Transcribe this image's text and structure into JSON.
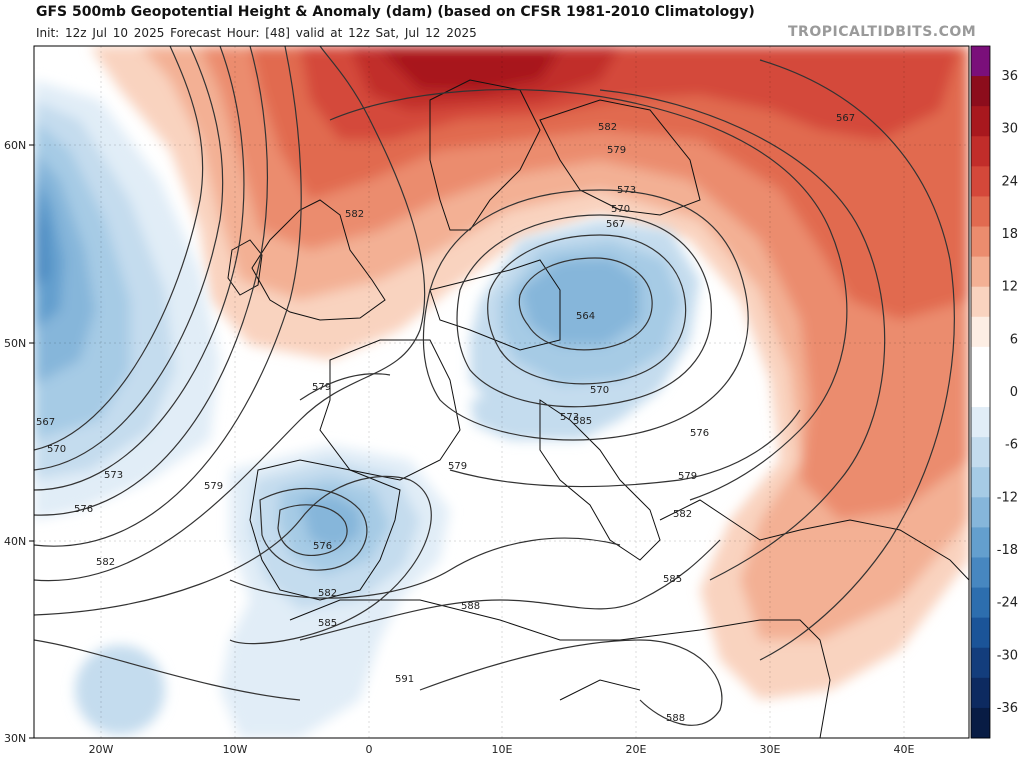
{
  "header": {
    "title": "GFS 500mb Geopotential Height & Anomaly (dam) (based on CFSR 1981-2010 Climatology)",
    "subtitle": "Init: 12z Jul 10 2025   Forecast Hour: [48]   valid at 12z Sat, Jul 12 2025",
    "brand": "TROPICALTIDBITS.COM"
  },
  "map": {
    "region": "Europe / North Atlantic",
    "lat_labels": [
      "60N",
      "50N",
      "40N",
      "30N"
    ],
    "lon_labels": [
      "20W",
      "10W",
      "0",
      "10E",
      "20E",
      "30E",
      "40E"
    ],
    "height_contour_labels": [
      "567",
      "582",
      "582",
      "579",
      "573",
      "570",
      "567",
      "564",
      "579",
      "579",
      "570",
      "573",
      "576",
      "579",
      "582",
      "585",
      "567",
      "570",
      "573",
      "576",
      "579",
      "582",
      "576",
      "582",
      "585",
      "588",
      "591",
      "588",
      "585"
    ],
    "anomaly_centers": [
      {
        "name": "Scandinavian ridge",
        "sign": "positive"
      },
      {
        "name": "Central European trough",
        "sign": "negative",
        "label": "564"
      },
      {
        "name": "Iberian cut-off low",
        "sign": "negative",
        "label": "576"
      },
      {
        "name": "Atlantic trough",
        "sign": "negative"
      }
    ]
  },
  "colorbar": {
    "labels": [
      "36",
      "30",
      "24",
      "18",
      "12",
      "6",
      "0",
      "-6",
      "-12",
      "-18",
      "-24",
      "-30",
      "-36"
    ],
    "colors": [
      "#7a0f7a",
      "#8c0d1c",
      "#a8181e",
      "#c12d2a",
      "#d4483a",
      "#e16a50",
      "#eb8c6e",
      "#f3b094",
      "#f9d3bf",
      "#fdeee4",
      "#ffffff",
      "#ffffff",
      "#e1edf7",
      "#c4dcee",
      "#a6cbe5",
      "#86b6da",
      "#649fce",
      "#4787c0",
      "#2d6eae",
      "#1b5498",
      "#133d7c",
      "#0d2a60",
      "#081c44"
    ]
  }
}
